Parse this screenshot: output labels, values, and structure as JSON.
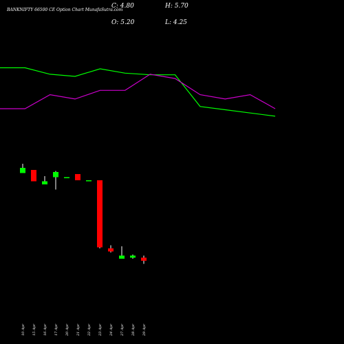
{
  "header": {
    "title": "BANKNIFTY 66500  CE Option  Chart MunafaSutra.com",
    "close": "C: 4.80",
    "open": "O: 5.20",
    "high": "H: 5.70",
    "low": "L: 4.25"
  },
  "colors": {
    "background": "#000000",
    "up": "#00ff00",
    "down": "#ff0000",
    "upper_line": "#00ff00",
    "lower_line": "#cc00cc",
    "wick": "#ffffff",
    "text": "#ffffff"
  },
  "chart_data": [
    {
      "type": "line",
      "title": "",
      "x": [
        "10 Apr",
        "15 Apr",
        "16 Apr",
        "17 Apr",
        "20 Apr",
        "21 Apr",
        "22 Apr",
        "23 Apr",
        "24 Apr",
        "27 Apr",
        "28 Apr",
        "29 Apr"
      ],
      "series": [
        {
          "values": [
            100,
            100,
            94,
            92,
            99,
            95,
            93.5,
            93.5,
            64,
            61,
            58,
            55
          ]
        },
        {
          "values": [
            62,
            62,
            75,
            71,
            79,
            79,
            94,
            90,
            75,
            71,
            75,
            62
          ]
        }
      ],
      "ylim": [
        0,
        115
      ]
    },
    {
      "type": "candlestick",
      "title": "",
      "x": [
        "10 Apr",
        "15 Apr",
        "16 Apr",
        "17 Apr",
        "20 Apr",
        "21 Apr",
        "22 Apr",
        "23 Apr",
        "24 Apr",
        "27 Apr",
        "28 Apr",
        "29 Apr"
      ],
      "ohlc": [
        {
          "open": 107,
          "high": 116,
          "low": 107,
          "close": 112,
          "dir": "up"
        },
        {
          "open": 110,
          "high": 110,
          "low": 99,
          "close": 99,
          "dir": "down"
        },
        {
          "open": 99,
          "high": 104,
          "low": 96,
          "close": 96,
          "dir": "up"
        },
        {
          "open": 103,
          "high": 109,
          "low": 91,
          "close": 108,
          "dir": "up"
        },
        {
          "open": 103,
          "high": 103,
          "low": 103,
          "close": 103,
          "dir": "up"
        },
        {
          "open": 106,
          "high": 106,
          "low": 100,
          "close": 100,
          "dir": "down"
        },
        {
          "open": 100,
          "high": 100,
          "low": 100,
          "close": 100,
          "dir": "up"
        },
        {
          "open": 100,
          "high": 100,
          "low": 34,
          "close": 35,
          "dir": "down"
        },
        {
          "open": 34,
          "high": 37,
          "low": 30,
          "close": 31,
          "dir": "down"
        },
        {
          "open": 24,
          "high": 36,
          "low": 24,
          "close": 27,
          "dir": "up"
        },
        {
          "open": 25,
          "high": 28,
          "low": 24,
          "close": 27,
          "dir": "up"
        },
        {
          "open": 25,
          "high": 27,
          "low": 19,
          "close": 22,
          "dir": "down"
        }
      ],
      "ylim": [
        0,
        120
      ]
    }
  ]
}
